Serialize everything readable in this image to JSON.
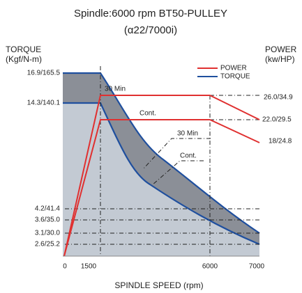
{
  "title": "Spindle:6000 rpm  BT50-PULLEY",
  "subtitle": "(α22/7000i)",
  "left_axis": {
    "title": "TORQUE",
    "unit": "(Kgf/N-m)",
    "ticks": [
      "16.9/165.5",
      "14.3/140.1",
      "4.2/41.4",
      "3.6/35.0",
      "3.1/30.0",
      "2.6/25.2"
    ]
  },
  "right_axis": {
    "title": "POWER",
    "unit": "(kw/HP)",
    "ticks": [
      "26.0/34.9",
      "22.0/29.5",
      "18/24.8"
    ]
  },
  "x_axis": {
    "title": "SPINDLE SPEED (rpm)",
    "ticks": [
      "0",
      "1500",
      "6000",
      "7000"
    ]
  },
  "legend": [
    "POWER",
    "TORQUE"
  ],
  "annotations": [
    "30 Min",
    "Cont.",
    "30 Min",
    "Cont."
  ]
}
